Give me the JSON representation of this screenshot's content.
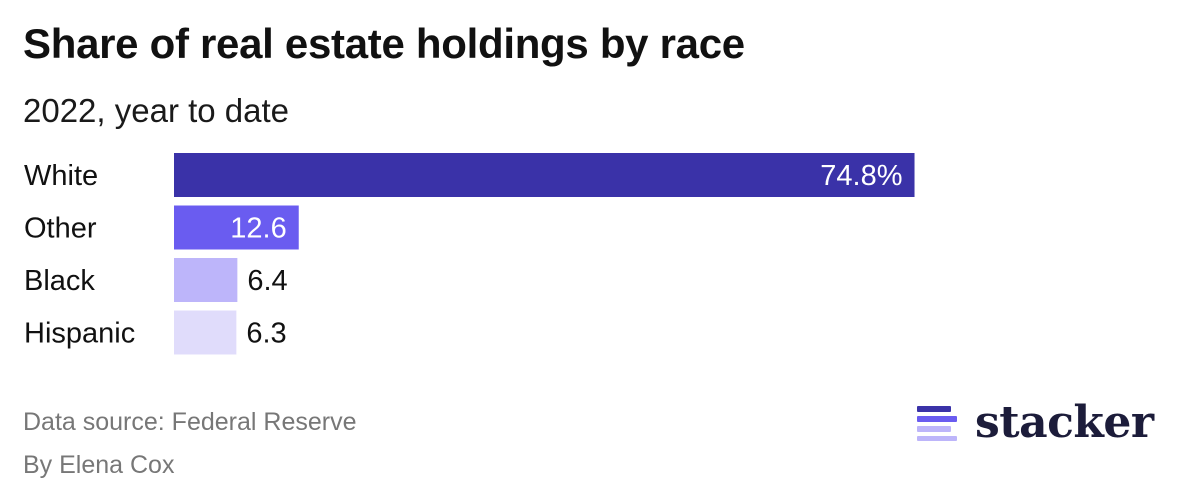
{
  "header": {
    "title": "Share of real estate holdings by race",
    "subtitle": "2022, year to date"
  },
  "chart_data": {
    "type": "bar",
    "orientation": "horizontal",
    "categories": [
      "White",
      "Other",
      "Black",
      "Hispanic"
    ],
    "values": [
      74.8,
      12.6,
      6.4,
      6.3
    ],
    "value_labels": [
      "74.8%",
      "12.6",
      "6.4",
      "6.3"
    ],
    "colors": [
      "#3a32a8",
      "#6a5cf0",
      "#bdb5fa",
      "#e0dcfb"
    ],
    "label_colors": [
      "#ffffff",
      "#ffffff",
      "#111111",
      "#111111"
    ],
    "label_inside": [
      true,
      true,
      false,
      false
    ],
    "xlim": [
      0,
      100
    ],
    "title": "Share of real estate holdings by race",
    "subtitle": "2022, year to date",
    "xlabel": "",
    "ylabel": "",
    "grid": false,
    "legend": "none"
  },
  "footer": {
    "source": "Data source: Federal Reserve",
    "byline": "By Elena Cox",
    "brand": "stacker",
    "brand_icon": "stacker-logo-icon",
    "brand_icon_colors": [
      "#3a32a8",
      "#6a5cf0",
      "#bdb5fa"
    ]
  }
}
